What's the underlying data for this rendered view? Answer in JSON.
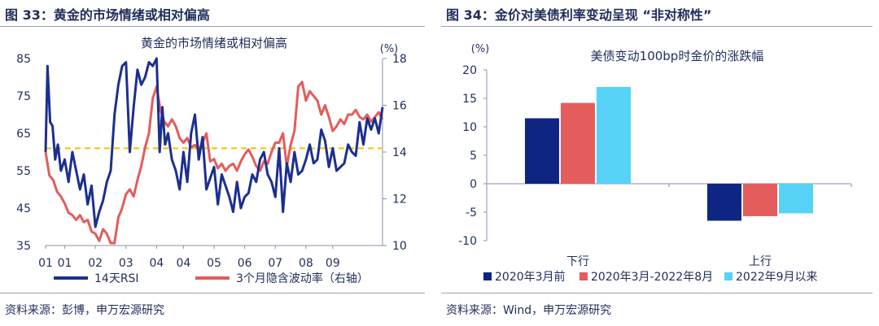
{
  "left": {
    "figure_title": "图 33：黄金的市场情绪或相对偏高",
    "source": "资料来源：彭博，申万宏源研究",
    "chart_data": {
      "type": "line",
      "title": "黄金的市场情绪或相对偏高",
      "y_right_unit": "(%)",
      "x_tick_labels": [
        "01",
        "01",
        "02",
        "03",
        "04",
        "04",
        "05",
        "06",
        "07",
        "08",
        "09"
      ],
      "x_domain": [
        2001.0,
        2009.8
      ],
      "x_ticks": [
        2001.0,
        2001.5,
        2002.3,
        2003.1,
        2003.9,
        2004.6,
        2005.4,
        2006.2,
        2007.0,
        2007.8,
        2008.5
      ],
      "ylim_left": [
        35,
        85
      ],
      "yticks_left": [
        35,
        45,
        55,
        65,
        75,
        85
      ],
      "ylim_right": [
        10,
        18
      ],
      "yticks_right": [
        10,
        12,
        14,
        16,
        18
      ],
      "threshold": {
        "axis": "left",
        "value": 61,
        "color": "#f2c200",
        "style": "dashed"
      },
      "series": [
        {
          "name": "14天RSI",
          "axis": "left",
          "color": "#1c2f8f",
          "x": [
            2001.0,
            2001.05,
            2001.12,
            2001.18,
            2001.25,
            2001.32,
            2001.4,
            2001.5,
            2001.6,
            2001.7,
            2001.8,
            2001.9,
            2002.0,
            2002.1,
            2002.2,
            2002.3,
            2002.4,
            2002.5,
            2002.6,
            2002.7,
            2002.8,
            2002.9,
            2003.0,
            2003.1,
            2003.2,
            2003.3,
            2003.4,
            2003.5,
            2003.6,
            2003.7,
            2003.8,
            2003.9,
            2003.98,
            2004.05,
            2004.12,
            2004.2,
            2004.3,
            2004.4,
            2004.5,
            2004.6,
            2004.7,
            2004.8,
            2004.9,
            2005.0,
            2005.1,
            2005.2,
            2005.3,
            2005.4,
            2005.5,
            2005.6,
            2005.7,
            2005.8,
            2005.9,
            2006.0,
            2006.1,
            2006.2,
            2006.3,
            2006.4,
            2006.5,
            2006.6,
            2006.7,
            2006.8,
            2006.9,
            2007.0,
            2007.1,
            2007.2,
            2007.3,
            2007.4,
            2007.5,
            2007.6,
            2007.7,
            2007.8,
            2007.9,
            2008.0,
            2008.1,
            2008.2,
            2008.3,
            2008.4,
            2008.5,
            2008.6,
            2008.7,
            2008.8,
            2008.9,
            2009.0,
            2009.1,
            2009.2,
            2009.3,
            2009.4,
            2009.5,
            2009.6,
            2009.7,
            2009.8
          ],
          "values": [
            60,
            83,
            68,
            67,
            58,
            62,
            55,
            58,
            52,
            60,
            55,
            50,
            54,
            46,
            51,
            40,
            44,
            47,
            52,
            55,
            70,
            78,
            83,
            84,
            60,
            72,
            82,
            78,
            80,
            84,
            83,
            85,
            60,
            72,
            62,
            65,
            58,
            55,
            50,
            60,
            52,
            65,
            70,
            58,
            64,
            50,
            53,
            56,
            46,
            54,
            51,
            48,
            44,
            52,
            45,
            48,
            49,
            54,
            52,
            58,
            60,
            54,
            52,
            48,
            61,
            44,
            57,
            52,
            60,
            54,
            55,
            58,
            62,
            57,
            58,
            66,
            63,
            56,
            61,
            55,
            56,
            57,
            62,
            60,
            59,
            68,
            62,
            69,
            66,
            69,
            65,
            72
          ]
        },
        {
          "name": "3个月隐含波动率（右轴）",
          "axis": "right",
          "color": "#e45c5c",
          "x": [
            2001.0,
            2001.1,
            2001.2,
            2001.3,
            2001.4,
            2001.5,
            2001.6,
            2001.7,
            2001.8,
            2001.9,
            2002.0,
            2002.1,
            2002.2,
            2002.3,
            2002.4,
            2002.5,
            2002.6,
            2002.7,
            2002.8,
            2002.9,
            2003.0,
            2003.1,
            2003.2,
            2003.3,
            2003.4,
            2003.5,
            2003.6,
            2003.7,
            2003.8,
            2003.9,
            2004.0,
            2004.1,
            2004.2,
            2004.3,
            2004.4,
            2004.5,
            2004.6,
            2004.7,
            2004.8,
            2004.9,
            2005.0,
            2005.1,
            2005.2,
            2005.3,
            2005.4,
            2005.5,
            2005.6,
            2005.7,
            2005.8,
            2005.9,
            2006.0,
            2006.1,
            2006.2,
            2006.3,
            2006.4,
            2006.5,
            2006.6,
            2006.7,
            2006.8,
            2006.9,
            2007.0,
            2007.1,
            2007.2,
            2007.3,
            2007.4,
            2007.5,
            2007.6,
            2007.7,
            2007.8,
            2007.9,
            2008.0,
            2008.1,
            2008.2,
            2008.3,
            2008.4,
            2008.5,
            2008.6,
            2008.7,
            2008.8,
            2008.9,
            2009.0,
            2009.1,
            2009.2,
            2009.3,
            2009.4,
            2009.5,
            2009.6,
            2009.7,
            2009.8
          ],
          "values": [
            14,
            13,
            12.8,
            12.3,
            12.1,
            11.8,
            11.4,
            11.3,
            11.1,
            11.3,
            11,
            11.1,
            10.6,
            10.5,
            10.2,
            10.7,
            10.5,
            10.1,
            10.1,
            11.2,
            11.6,
            12.2,
            12.4,
            12.1,
            12.8,
            13.4,
            14.2,
            14.8,
            16.3,
            16.8,
            15.8,
            15.3,
            15.1,
            15.4,
            15.1,
            14.6,
            14.4,
            14.6,
            14.2,
            14.3,
            14.1,
            14.4,
            14.8,
            13.6,
            13.7,
            13.3,
            13.5,
            13.2,
            13.4,
            13.5,
            13.2,
            13.6,
            13.9,
            14.1,
            13.8,
            13.4,
            13.2,
            13.6,
            13.5,
            14.0,
            14.4,
            14.4,
            14.8,
            13.4,
            14.3,
            14.9,
            16.8,
            17.0,
            16.2,
            16.6,
            16.4,
            16.2,
            15.6,
            16.0,
            15.5,
            14.9,
            15.1,
            15.4,
            15.2,
            15.6,
            15.6,
            15.8,
            15.5,
            15.4,
            15.6,
            15.3,
            15.5,
            15.7,
            15.4
          ]
        }
      ]
    }
  },
  "right": {
    "figure_title": "图 34：金价对美债利率变动呈现 “非对称性”",
    "source": "资料来源：Wind，申万宏源研究",
    "chart_data": {
      "type": "bar",
      "title": "美债变动100bp时金价的涨跌幅",
      "y_unit": "(%)",
      "ylim": [
        -10,
        20
      ],
      "yticks": [
        -10,
        -5,
        0,
        5,
        10,
        15,
        20
      ],
      "categories": [
        "下行",
        "上行"
      ],
      "series": [
        {
          "name": "2020年3月前",
          "color": "#0f2583",
          "values": [
            11.5,
            -6.5
          ]
        },
        {
          "name": "2020年3月-2022年8月",
          "color": "#e45c5c",
          "values": [
            14.2,
            -5.7
          ]
        },
        {
          "name": "2022年9月以来",
          "color": "#56d2f7",
          "values": [
            17.0,
            -5.2
          ]
        }
      ]
    }
  }
}
